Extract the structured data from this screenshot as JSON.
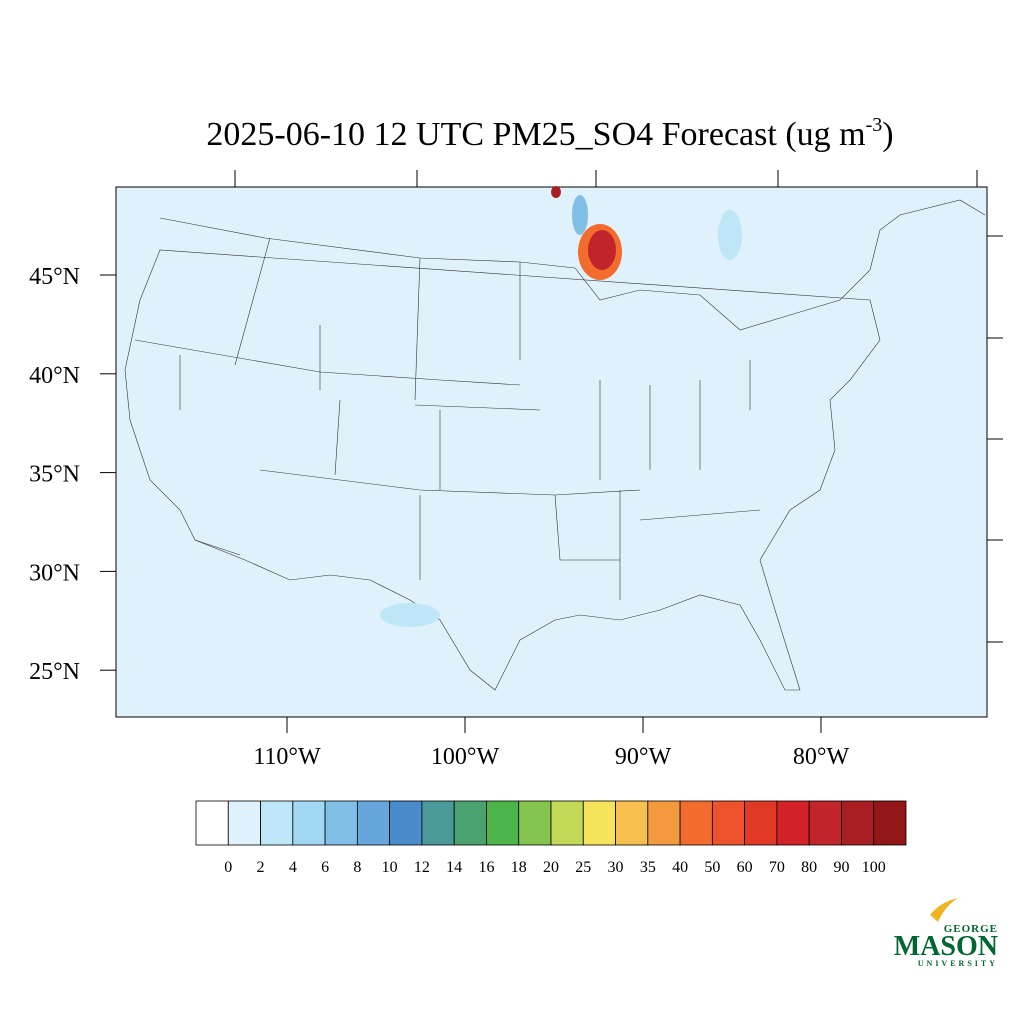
{
  "title": {
    "main": "2025-06-10 12 UTC PM25_SO4 Forecast (ug m",
    "sup": "-3",
    "end": ")"
  },
  "map": {
    "lat_labels": [
      "45°N",
      "40°N",
      "35°N",
      "30°N",
      "25°N"
    ],
    "lon_labels": [
      "110°W",
      "100°W",
      "90°W",
      "80°W"
    ]
  },
  "colorbar": {
    "labels": [
      "0",
      "2",
      "4",
      "6",
      "8",
      "10",
      "12",
      "14",
      "16",
      "18",
      "20",
      "25",
      "30",
      "35",
      "40",
      "50",
      "60",
      "70",
      "80",
      "90",
      "100"
    ],
    "colors": [
      "#ffffff",
      "#dff2fb",
      "#bfe6f7",
      "#a0d8f4",
      "#80bfe6",
      "#66a6db",
      "#4a8bc9",
      "#4a9a9a",
      "#4aa36e",
      "#4bb54b",
      "#84c44e",
      "#c2d857",
      "#f6e35c",
      "#f6bf4e",
      "#f49a3e",
      "#f26d2d",
      "#ec522c",
      "#e03a27",
      "#d42229",
      "#c1242a",
      "#a91e22",
      "#931619"
    ]
  },
  "logo": {
    "top": "GEORGE",
    "main": "MASON",
    "bottom": "UNIVERSITY"
  }
}
